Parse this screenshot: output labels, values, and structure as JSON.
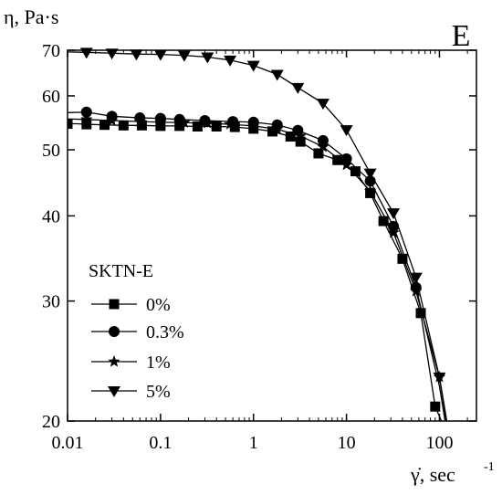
{
  "chart_data": {
    "type": "line",
    "panel_label": "E",
    "ylabel": "η, Pa·s",
    "xlabel": "γ̇, sec",
    "xlabel_sup": "-1",
    "x_scale": "log",
    "y_scale": "log",
    "xlim": [
      0.01,
      250
    ],
    "ylim": [
      20,
      70
    ],
    "x_ticks": [
      {
        "value": 0.01,
        "label": "0.01"
      },
      {
        "value": 0.1,
        "label": "0.1"
      },
      {
        "value": 1,
        "label": "1"
      },
      {
        "value": 10,
        "label": "10"
      },
      {
        "value": 100,
        "label": "100"
      }
    ],
    "y_ticks": [
      {
        "value": 20,
        "label": "20"
      },
      {
        "value": 30,
        "label": "30"
      },
      {
        "value": 40,
        "label": "40"
      },
      {
        "value": 50,
        "label": "50"
      },
      {
        "value": 60,
        "label": "60"
      },
      {
        "value": 70,
        "label": "70"
      }
    ],
    "legend_title": "SKTN-E",
    "legend_position": "bottom-left",
    "series": [
      {
        "name": "0%",
        "marker": "square",
        "points": [
          [
            0.01,
            54.6
          ],
          [
            0.0126,
            54.6
          ],
          [
            0.016,
            54.5
          ],
          [
            0.025,
            54.4
          ],
          [
            0.04,
            54.3
          ],
          [
            0.063,
            54.3
          ],
          [
            0.1,
            54.2
          ],
          [
            0.16,
            54.2
          ],
          [
            0.25,
            54.1
          ],
          [
            0.4,
            54.1
          ],
          [
            0.63,
            54.0
          ],
          [
            1.0,
            53.7
          ],
          [
            1.6,
            53.2
          ],
          [
            2.5,
            52.3
          ],
          [
            3.2,
            51.4
          ],
          [
            5.0,
            49.4
          ],
          [
            8.0,
            48.3
          ],
          [
            12.5,
            46.5
          ],
          [
            18,
            43.2
          ],
          [
            25,
            39.3
          ],
          [
            40,
            34.6
          ],
          [
            63,
            28.8
          ],
          [
            90,
            21.0
          ],
          [
            105,
            20.0
          ]
        ],
        "markers_at": [
          [
            0.01,
            54.6
          ],
          [
            0.016,
            54.5
          ],
          [
            0.025,
            54.4
          ],
          [
            0.04,
            54.3
          ],
          [
            0.063,
            54.3
          ],
          [
            0.1,
            54.2
          ],
          [
            0.16,
            54.2
          ],
          [
            0.25,
            54.1
          ],
          [
            0.4,
            54.1
          ],
          [
            0.63,
            54.0
          ],
          [
            1.0,
            53.7
          ],
          [
            1.6,
            53.2
          ],
          [
            2.5,
            52.3
          ],
          [
            3.2,
            51.4
          ],
          [
            5.0,
            49.4
          ],
          [
            8.0,
            48.3
          ],
          [
            12.5,
            46.5
          ],
          [
            18,
            43.2
          ],
          [
            25,
            39.3
          ],
          [
            40,
            34.6
          ],
          [
            63,
            28.8
          ],
          [
            90,
            21.0
          ]
        ]
      },
      {
        "name": "0.3%",
        "marker": "circle",
        "points": [
          [
            0.01,
            56.7
          ],
          [
            0.016,
            56.8
          ],
          [
            0.03,
            56.0
          ],
          [
            0.06,
            55.7
          ],
          [
            0.1,
            55.6
          ],
          [
            0.16,
            55.4
          ],
          [
            0.3,
            55.2
          ],
          [
            0.6,
            55.0
          ],
          [
            1.0,
            54.9
          ],
          [
            1.8,
            54.4
          ],
          [
            3.0,
            53.4
          ],
          [
            5.6,
            51.6
          ],
          [
            10,
            48.5
          ],
          [
            18,
            45.0
          ],
          [
            32,
            38.6
          ],
          [
            56,
            31.4
          ],
          [
            100,
            22.5
          ],
          [
            115,
            20.0
          ]
        ],
        "markers_at": [
          [
            0.016,
            56.8
          ],
          [
            0.03,
            56.0
          ],
          [
            0.06,
            55.7
          ],
          [
            0.1,
            55.6
          ],
          [
            0.16,
            55.4
          ],
          [
            0.3,
            55.2
          ],
          [
            0.6,
            55.0
          ],
          [
            1.0,
            54.9
          ],
          [
            1.8,
            54.4
          ],
          [
            3.0,
            53.4
          ],
          [
            5.6,
            51.6
          ],
          [
            10,
            48.5
          ],
          [
            18,
            45.0
          ],
          [
            32,
            38.6
          ],
          [
            56,
            31.4
          ]
        ]
      },
      {
        "name": "1%",
        "marker": "star",
        "points": [
          [
            0.01,
            55.5
          ],
          [
            0.016,
            55.4
          ],
          [
            0.03,
            55.2
          ],
          [
            0.06,
            55.0
          ],
          [
            0.1,
            54.9
          ],
          [
            0.18,
            54.8
          ],
          [
            0.32,
            54.7
          ],
          [
            0.56,
            54.5
          ],
          [
            1.0,
            54.2
          ],
          [
            1.8,
            53.6
          ],
          [
            3.2,
            52.4
          ],
          [
            5.6,
            50.5
          ],
          [
            10,
            47.5
          ],
          [
            18,
            43.5
          ],
          [
            32,
            37.8
          ],
          [
            56,
            31.0
          ],
          [
            100,
            23.2
          ],
          [
            118,
            20.0
          ]
        ],
        "markers_at": [
          [
            0.016,
            55.4
          ],
          [
            0.03,
            55.2
          ],
          [
            0.06,
            55.0
          ],
          [
            0.1,
            54.9
          ],
          [
            0.18,
            54.8
          ],
          [
            0.32,
            54.7
          ],
          [
            0.56,
            54.5
          ],
          [
            1.0,
            54.2
          ],
          [
            1.8,
            53.6
          ],
          [
            3.2,
            52.4
          ],
          [
            5.6,
            50.5
          ],
          [
            10,
            47.5
          ],
          [
            18,
            43.5
          ],
          [
            32,
            37.8
          ],
          [
            56,
            31.0
          ],
          [
            100,
            23.2
          ]
        ]
      },
      {
        "name": "5%",
        "marker": "triangle-down",
        "points": [
          [
            0.01,
            69.6
          ],
          [
            0.016,
            69.5
          ],
          [
            0.03,
            69.3
          ],
          [
            0.055,
            69.1
          ],
          [
            0.1,
            69.0
          ],
          [
            0.18,
            68.8
          ],
          [
            0.32,
            68.4
          ],
          [
            0.56,
            67.7
          ],
          [
            1.0,
            66.5
          ],
          [
            1.8,
            64.5
          ],
          [
            3.0,
            61.7
          ],
          [
            5.6,
            58.5
          ],
          [
            10,
            53.5
          ],
          [
            18,
            46.2
          ],
          [
            32,
            40.4
          ],
          [
            56,
            32.5
          ],
          [
            100,
            23.2
          ],
          [
            120,
            20.0
          ]
        ],
        "markers_at": [
          [
            0.016,
            69.5
          ],
          [
            0.03,
            69.3
          ],
          [
            0.055,
            69.1
          ],
          [
            0.1,
            69.0
          ],
          [
            0.18,
            68.8
          ],
          [
            0.32,
            68.4
          ],
          [
            0.56,
            67.7
          ],
          [
            1.0,
            66.5
          ],
          [
            1.8,
            64.5
          ],
          [
            3.0,
            61.7
          ],
          [
            5.6,
            58.5
          ],
          [
            10,
            53.5
          ],
          [
            18,
            46.2
          ],
          [
            32,
            40.4
          ],
          [
            56,
            32.5
          ],
          [
            100,
            23.2
          ]
        ]
      }
    ]
  }
}
